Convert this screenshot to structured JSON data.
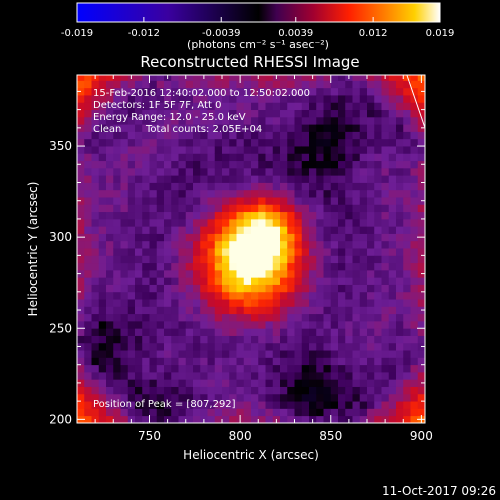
{
  "chart_data": {
    "type": "heatmap",
    "title": "Reconstructed RHESSI Image",
    "xlabel": "Heliocentric X (arcsec)",
    "ylabel": "Heliocentric Y (arcsec)",
    "xlim": [
      710,
      902
    ],
    "ylim": [
      198,
      389
    ],
    "xticks": [
      750,
      800,
      850,
      900
    ],
    "yticks": [
      200,
      250,
      300,
      350
    ],
    "colorbar": {
      "unit_label": "(photons cm⁻² s⁻¹ asec⁻²)",
      "ticks": [
        "-0.019",
        "-0.012",
        "-0.0039",
        "0.0039",
        "0.012",
        "0.019"
      ],
      "range": [
        -0.019,
        0.019
      ],
      "colormap": [
        "#0000ff",
        "#3a00a0",
        "#000000",
        "#400050",
        "#a00030",
        "#ff2000",
        "#ff8000",
        "#ffd000",
        "#ffffff"
      ]
    },
    "annotations": [
      "15-Feb-2016 12:40:02.000 to 12:50:02.000",
      "Detectors: 1F 5F 7F, Att 0",
      "Energy Range: 12.0 - 25.0 keV",
      "Clean",
      "Total counts: 2.05E+04"
    ],
    "peak_label": "Position of Peak = [807,292]",
    "peak": {
      "x": 807,
      "y": 292,
      "value": 0.019
    },
    "source": {
      "x": 805,
      "y": 287,
      "sigma_arcsec": 21
    },
    "background_level": 0.0012,
    "residual_ring": {
      "radius_arcsec": 82,
      "level": 0.0028
    },
    "edge_level": 0.011,
    "negative_patches": [
      {
        "x": 850,
        "y": 355,
        "value": -0.004
      },
      {
        "x": 730,
        "y": 245,
        "value": -0.003
      },
      {
        "x": 840,
        "y": 215,
        "value": -0.005
      },
      {
        "x": 760,
        "y": 205,
        "value": -0.003
      }
    ]
  },
  "footer_date": "11-Oct-2017 09:26"
}
